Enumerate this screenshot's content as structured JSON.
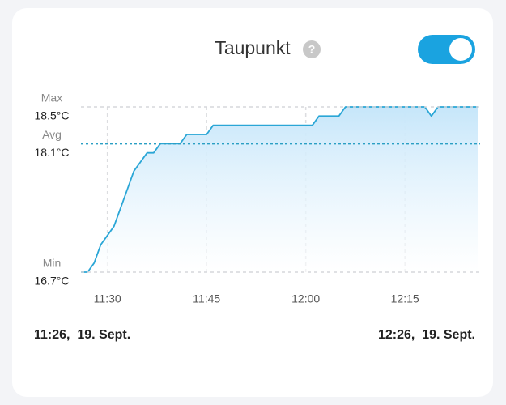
{
  "chart_data": {
    "type": "area",
    "title": "Taupunkt",
    "help_icon": "?",
    "toggle_on": true,
    "x": [
      "11:26",
      "11:27",
      "11:28",
      "11:29",
      "11:30",
      "11:31",
      "11:32",
      "11:33",
      "11:34",
      "11:35",
      "11:36",
      "11:37",
      "11:38",
      "11:41",
      "11:42",
      "11:45",
      "11:46",
      "12:01",
      "12:02",
      "12:05",
      "12:06",
      "12:18",
      "12:19",
      "12:20",
      "12:26"
    ],
    "series": [
      {
        "color": "#2aa6d6",
        "values": [
          16.7,
          16.7,
          16.8,
          17.0,
          17.1,
          17.2,
          17.4,
          17.6,
          17.8,
          17.9,
          18.0,
          18.0,
          18.1,
          18.1,
          18.2,
          18.2,
          18.3,
          18.3,
          18.4,
          18.4,
          18.5,
          18.5,
          18.4,
          18.5,
          18.5
        ]
      }
    ],
    "xlim": [
      "11:26",
      "12:26"
    ],
    "xticks": [
      "11:30",
      "11:45",
      "12:00",
      "12:15"
    ],
    "ylim": [
      16.7,
      18.5
    ],
    "reference_lines": [
      {
        "name": "Max",
        "value": 18.5,
        "value_label": "18.5°C",
        "color": "#d5d7db"
      },
      {
        "name": "Avg",
        "value": 18.1,
        "value_label": "18.1°C",
        "color": "#2a9fc4"
      },
      {
        "name": "Min",
        "value": 16.7,
        "value_label": "16.7°C",
        "color": "#d5d7db"
      }
    ],
    "grid": true,
    "range_start": "11:26,  19. Sept.",
    "range_end": "12:26,  19. Sept."
  }
}
